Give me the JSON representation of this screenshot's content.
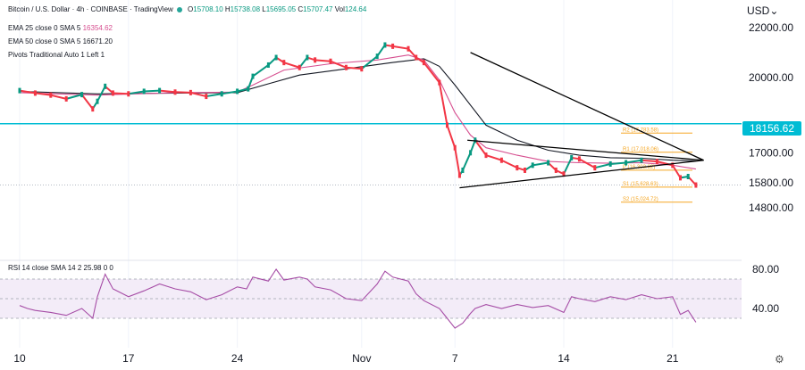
{
  "header": {
    "symbol": "Bitcoin / U.S. Dollar · 4h · COINBASE · TradingView",
    "ohlc": {
      "open_label": "O",
      "open": "15708.10",
      "high_label": "H",
      "high": "15738.08",
      "low_label": "L",
      "low": "15695.05",
      "close_label": "C",
      "close": "15707.47",
      "vol_label": "Vol",
      "vol": "124.64"
    },
    "indicators": [
      {
        "label": "EMA 25 close 0 SMA 5",
        "value": "16354.62"
      },
      {
        "label": "EMA 50 close 0 SMA 5",
        "value": "16671.20"
      },
      {
        "label": "Pivots Traditional Auto 1 Left 1",
        "value": ""
      }
    ],
    "currency": "USD"
  },
  "price_tag": "18156.62",
  "rsi_label": "RSI 14 close SMA 14 2  25.98  0  0",
  "colors": {
    "up": "#089981",
    "down": "#f23645",
    "ema25": "#d64e8f",
    "ema50": "#131722",
    "rsi": "#a64da6",
    "horizontal": "#00bcd4",
    "pivot": "#f5a623",
    "trendline": "#000000"
  },
  "chart_data": {
    "type": "line",
    "price_axis": {
      "ticks": [
        "22000.00",
        "20000.00",
        "17000.00",
        "15800.00",
        "14800.00"
      ],
      "values": [
        22000,
        20000,
        17000,
        15800,
        14800
      ]
    },
    "rsi_axis": {
      "ticks": [
        "80.00",
        "40.00"
      ],
      "values": [
        80,
        40
      ]
    },
    "x_ticks": [
      {
        "label": "10",
        "t": 0
      },
      {
        "label": "17",
        "t": 7
      },
      {
        "label": "24",
        "t": 14
      },
      {
        "label": "Nov",
        "t": 22
      },
      {
        "label": "7",
        "t": 28
      },
      {
        "label": "14",
        "t": 35
      },
      {
        "label": "21",
        "t": 42
      }
    ],
    "price_series": [
      [
        0,
        19480
      ],
      [
        1,
        19380
      ],
      [
        2,
        19300
      ],
      [
        3,
        19150
      ],
      [
        4,
        19320
      ],
      [
        4.7,
        18750
      ],
      [
        5,
        19050
      ],
      [
        5.5,
        19650
      ],
      [
        6,
        19380
      ],
      [
        7,
        19350
      ],
      [
        8,
        19450
      ],
      [
        9,
        19480
      ],
      [
        10,
        19420
      ],
      [
        11,
        19400
      ],
      [
        12,
        19250
      ],
      [
        13,
        19350
      ],
      [
        14,
        19450
      ],
      [
        14.7,
        19550
      ],
      [
        15,
        20050
      ],
      [
        16,
        20500
      ],
      [
        16.5,
        20800
      ],
      [
        17,
        20600
      ],
      [
        18,
        20400
      ],
      [
        18.5,
        20800
      ],
      [
        19,
        20700
      ],
      [
        20,
        20650
      ],
      [
        21,
        20400
      ],
      [
        22,
        20350
      ],
      [
        23,
        20850
      ],
      [
        23.5,
        21300
      ],
      [
        24,
        21250
      ],
      [
        25,
        21150
      ],
      [
        25.5,
        20800
      ],
      [
        26,
        20600
      ],
      [
        27,
        19800
      ],
      [
        27.5,
        18100
      ],
      [
        28,
        17200
      ],
      [
        28.3,
        16100
      ],
      [
        28.5,
        16300
      ],
      [
        29,
        17000
      ],
      [
        29.3,
        17500
      ],
      [
        30,
        16900
      ],
      [
        31,
        16700
      ],
      [
        32,
        16400
      ],
      [
        32.5,
        16300
      ],
      [
        33,
        16500
      ],
      [
        34,
        16600
      ],
      [
        34.5,
        16300
      ],
      [
        35,
        16150
      ],
      [
        35.5,
        16800
      ],
      [
        36,
        16750
      ],
      [
        37,
        16400
      ],
      [
        38,
        16550
      ],
      [
        39,
        16600
      ],
      [
        40,
        16700
      ],
      [
        41,
        16650
      ],
      [
        42,
        16500
      ],
      [
        42.5,
        16000
      ],
      [
        43,
        16050
      ],
      [
        43.5,
        15710
      ]
    ],
    "ema25_series": [
      [
        0,
        19400
      ],
      [
        5,
        19300
      ],
      [
        10,
        19400
      ],
      [
        14,
        19420
      ],
      [
        15,
        19700
      ],
      [
        17,
        20300
      ],
      [
        20,
        20550
      ],
      [
        23,
        20700
      ],
      [
        25,
        20900
      ],
      [
        26,
        20700
      ],
      [
        27,
        19900
      ],
      [
        28,
        18600
      ],
      [
        29,
        17700
      ],
      [
        30,
        17200
      ],
      [
        32,
        16900
      ],
      [
        34,
        16650
      ],
      [
        36,
        16600
      ],
      [
        38,
        16580
      ],
      [
        40,
        16600
      ],
      [
        42,
        16500
      ],
      [
        43.5,
        16350
      ]
    ],
    "ema50_series": [
      [
        0,
        19450
      ],
      [
        5,
        19350
      ],
      [
        10,
        19380
      ],
      [
        14,
        19400
      ],
      [
        16,
        19750
      ],
      [
        18,
        20100
      ],
      [
        21,
        20350
      ],
      [
        24,
        20600
      ],
      [
        26,
        20750
      ],
      [
        27,
        20450
      ],
      [
        28,
        19700
      ],
      [
        29,
        18900
      ],
      [
        30,
        18100
      ],
      [
        32,
        17500
      ],
      [
        34,
        17100
      ],
      [
        36,
        16900
      ],
      [
        38,
        16800
      ],
      [
        40,
        16780
      ],
      [
        42,
        16700
      ],
      [
        43.5,
        16670
      ]
    ],
    "rsi_series": [
      [
        0,
        43
      ],
      [
        0.5,
        40
      ],
      [
        1,
        38
      ],
      [
        2,
        36
      ],
      [
        3,
        33
      ],
      [
        4,
        40
      ],
      [
        4.7,
        30
      ],
      [
        5,
        52
      ],
      [
        5.5,
        75
      ],
      [
        6,
        60
      ],
      [
        7,
        52
      ],
      [
        8,
        58
      ],
      [
        9,
        65
      ],
      [
        10,
        60
      ],
      [
        11,
        57
      ],
      [
        12,
        49
      ],
      [
        13,
        54
      ],
      [
        14,
        62
      ],
      [
        14.6,
        60
      ],
      [
        15,
        72
      ],
      [
        16,
        68
      ],
      [
        16.5,
        80
      ],
      [
        17,
        69
      ],
      [
        18,
        72
      ],
      [
        18.5,
        70
      ],
      [
        19,
        62
      ],
      [
        20,
        59
      ],
      [
        21,
        50
      ],
      [
        22,
        48
      ],
      [
        23,
        65
      ],
      [
        23.5,
        78
      ],
      [
        24,
        72
      ],
      [
        25,
        68
      ],
      [
        25.5,
        55
      ],
      [
        26,
        48
      ],
      [
        27,
        40
      ],
      [
        27.5,
        30
      ],
      [
        28,
        20
      ],
      [
        28.5,
        25
      ],
      [
        29,
        35
      ],
      [
        29.3,
        40
      ],
      [
        30,
        44
      ],
      [
        31,
        40
      ],
      [
        32,
        44
      ],
      [
        33,
        41
      ],
      [
        34,
        43
      ],
      [
        35,
        36
      ],
      [
        35.5,
        52
      ],
      [
        36,
        50
      ],
      [
        37,
        47
      ],
      [
        38,
        52
      ],
      [
        39,
        49
      ],
      [
        40,
        54
      ],
      [
        41,
        50
      ],
      [
        42,
        52
      ],
      [
        42.5,
        34
      ],
      [
        43,
        38
      ],
      [
        43.5,
        26
      ]
    ],
    "horizontal_line": 18156.62,
    "pivots": [
      {
        "label": "R2 (17,783.58)",
        "value": 17783.58
      },
      {
        "label": "R1 (17,018.06)",
        "value": 17018.06
      },
      {
        "label": "P (16,303.82)",
        "value": 16303.82
      },
      {
        "label": "S1 (15,628.63)",
        "value": 15628.63
      },
      {
        "label": "S2 (15,024.72)",
        "value": 15024.72
      }
    ],
    "trendlines": [
      {
        "name": "downtrend",
        "points": [
          [
            29.0,
            21000
          ],
          [
            44.0,
            16700
          ]
        ]
      },
      {
        "name": "triangle-upper",
        "points": [
          [
            28.8,
            17500
          ],
          [
            44.0,
            16700
          ]
        ]
      },
      {
        "name": "triangle-lower",
        "points": [
          [
            28.3,
            15600
          ],
          [
            44.0,
            16700
          ]
        ]
      }
    ],
    "rsi_levels": [
      70,
      50,
      30
    ]
  }
}
